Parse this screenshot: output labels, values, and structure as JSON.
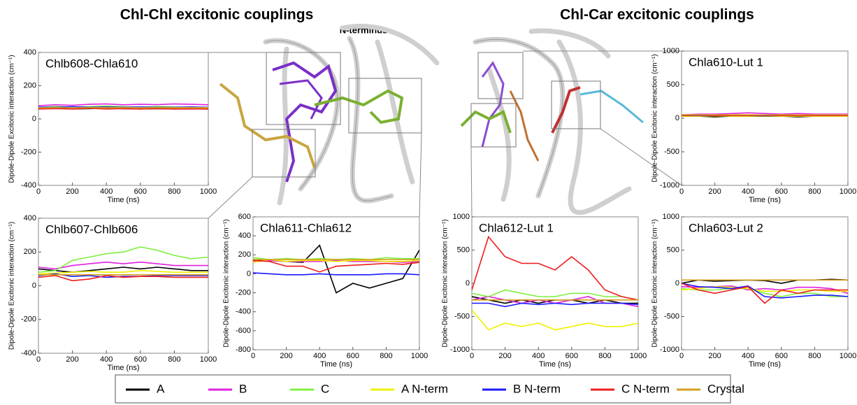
{
  "headings": {
    "left": "Chl-Chl excitonic couplings",
    "right": "Chl-Car excitonic couplings",
    "n_terminus": "N-terminus"
  },
  "chart_data": [
    {
      "type": "line",
      "title": "Chlb608-Chla610",
      "xlabel": "Time (ns)",
      "ylabel": "Dipole-Dipole Excitonic interaction (cm⁻¹)",
      "x": [
        0,
        100,
        200,
        300,
        400,
        500,
        600,
        700,
        800,
        900,
        1000
      ],
      "xlim": [
        0,
        1000
      ],
      "xticks": [
        0,
        200,
        400,
        600,
        800,
        1000
      ],
      "ylim": [
        -400,
        400
      ],
      "yticks": [
        -400,
        -200,
        0,
        200,
        400
      ],
      "series": [
        {
          "name": "A",
          "color": "#000000",
          "values": [
            60,
            65,
            60,
            62,
            65,
            62,
            60,
            62,
            60,
            62,
            60
          ]
        },
        {
          "name": "B",
          "color": "#e020e0",
          "values": [
            80,
            85,
            82,
            88,
            90,
            85,
            88,
            86,
            90,
            88,
            85
          ]
        },
        {
          "name": "C",
          "color": "#80f040",
          "values": [
            70,
            75,
            72,
            74,
            78,
            74,
            70,
            75,
            72,
            70,
            70
          ]
        },
        {
          "name": "A N-term",
          "color": "#f0f000",
          "values": [
            65,
            68,
            70,
            66,
            68,
            65,
            66,
            68,
            65,
            64,
            64
          ]
        },
        {
          "name": "B N-term",
          "color": "#1a1aff",
          "values": [
            72,
            70,
            74,
            70,
            72,
            70,
            72,
            70,
            70,
            72,
            70
          ]
        },
        {
          "name": "C N-term",
          "color": "#ee1c1c",
          "values": [
            60,
            62,
            60,
            64,
            60,
            62,
            60,
            62,
            60,
            60,
            60
          ]
        },
        {
          "name": "Crystal",
          "color": "#d4a020",
          "values": [
            68,
            68,
            68,
            68,
            68,
            68,
            68,
            68,
            68,
            68,
            68
          ]
        }
      ]
    },
    {
      "type": "line",
      "title": "Chlb607-Chlb606",
      "xlabel": "Time (ns)",
      "ylabel": "Dipole-Dipole Excitonic interaction (cm⁻¹)",
      "x": [
        0,
        100,
        200,
        300,
        400,
        500,
        600,
        700,
        800,
        900,
        1000
      ],
      "xlim": [
        0,
        1000
      ],
      "xticks": [
        0,
        200,
        400,
        600,
        800,
        1000
      ],
      "ylim": [
        -400,
        400
      ],
      "yticks": [
        -400,
        -200,
        0,
        200,
        400
      ],
      "series": [
        {
          "name": "A",
          "color": "#000000",
          "values": [
            100,
            90,
            80,
            90,
            100,
            110,
            100,
            110,
            100,
            90,
            90
          ]
        },
        {
          "name": "B",
          "color": "#e020e0",
          "values": [
            110,
            100,
            120,
            130,
            140,
            130,
            140,
            130,
            120,
            120,
            120
          ]
        },
        {
          "name": "C",
          "color": "#80f040",
          "values": [
            80,
            90,
            150,
            170,
            190,
            200,
            230,
            210,
            180,
            160,
            170
          ]
        },
        {
          "name": "A N-term",
          "color": "#f0f000",
          "values": [
            70,
            75,
            80,
            85,
            80,
            80,
            90,
            85,
            80,
            80,
            80
          ]
        },
        {
          "name": "B N-term",
          "color": "#1a1aff",
          "values": [
            60,
            70,
            55,
            60,
            50,
            55,
            55,
            60,
            60,
            60,
            60
          ]
        },
        {
          "name": "C N-term",
          "color": "#ee1c1c",
          "values": [
            50,
            60,
            30,
            40,
            60,
            50,
            55,
            55,
            50,
            50,
            50
          ]
        },
        {
          "name": "Crystal",
          "color": "#d4a020",
          "values": [
            65,
            65,
            65,
            65,
            65,
            65,
            65,
            65,
            65,
            65,
            65
          ]
        }
      ]
    },
    {
      "type": "line",
      "title": "Chla611-Chla612",
      "xlabel": "Time (ns)",
      "ylabel": "Dipole-Dipole Excitonic interaction (cm⁻¹)",
      "x": [
        0,
        100,
        200,
        300,
        400,
        500,
        600,
        700,
        800,
        900,
        1000
      ],
      "xlim": [
        0,
        1000
      ],
      "xticks": [
        0,
        200,
        400,
        600,
        800,
        1000
      ],
      "ylim": [
        -800,
        600
      ],
      "yticks": [
        -800,
        -600,
        -400,
        -200,
        0,
        200,
        400,
        600
      ],
      "series": [
        {
          "name": "A",
          "color": "#000000",
          "values": [
            150,
            140,
            130,
            120,
            300,
            -200,
            -100,
            -150,
            -100,
            -50,
            250
          ]
        },
        {
          "name": "B",
          "color": "#e020e0",
          "values": [
            130,
            140,
            130,
            130,
            130,
            140,
            130,
            130,
            130,
            120,
            130
          ]
        },
        {
          "name": "C",
          "color": "#80f040",
          "values": [
            170,
            150,
            160,
            150,
            160,
            150,
            160,
            150,
            170,
            160,
            160
          ]
        },
        {
          "name": "A N-term",
          "color": "#f0f000",
          "values": [
            120,
            150,
            130,
            140,
            140,
            130,
            140,
            140,
            130,
            130,
            140
          ]
        },
        {
          "name": "B N-term",
          "color": "#1a1aff",
          "values": [
            10,
            0,
            -10,
            -10,
            0,
            -10,
            -10,
            -10,
            0,
            0,
            -10
          ]
        },
        {
          "name": "C N-term",
          "color": "#ee1c1c",
          "values": [
            140,
            130,
            80,
            80,
            20,
            80,
            90,
            100,
            110,
            100,
            120
          ]
        },
        {
          "name": "Crystal",
          "color": "#d4a020",
          "values": [
            150,
            150,
            150,
            150,
            150,
            150,
            150,
            150,
            150,
            150,
            150
          ]
        }
      ]
    },
    {
      "type": "line",
      "title": "Chla610-Lut 1",
      "xlabel": "Time (ns)",
      "ylabel": "Dipole-Dipole Excitonic interaction (cm⁻¹)",
      "x": [
        0,
        100,
        200,
        300,
        400,
        500,
        600,
        700,
        800,
        900,
        1000
      ],
      "xlim": [
        0,
        1000
      ],
      "xticks": [
        0,
        200,
        400,
        600,
        800,
        1000
      ],
      "ylim": [
        -1000,
        1000
      ],
      "yticks": [
        -1000,
        -500,
        0,
        500,
        1000
      ],
      "series": [
        {
          "name": "A",
          "color": "#000000",
          "values": [
            30,
            30,
            20,
            30,
            30,
            30,
            30,
            20,
            30,
            30,
            30
          ]
        },
        {
          "name": "B",
          "color": "#e020e0",
          "values": [
            50,
            60,
            60,
            70,
            80,
            70,
            60,
            70,
            60,
            60,
            60
          ]
        },
        {
          "name": "C",
          "color": "#80f040",
          "values": [
            40,
            40,
            40,
            50,
            50,
            40,
            40,
            40,
            40,
            40,
            40
          ]
        },
        {
          "name": "A N-term",
          "color": "#f0f000",
          "values": [
            30,
            30,
            35,
            30,
            30,
            35,
            30,
            30,
            30,
            30,
            30
          ]
        },
        {
          "name": "B N-term",
          "color": "#1a1aff",
          "values": [
            40,
            40,
            40,
            45,
            40,
            40,
            40,
            45,
            40,
            40,
            40
          ]
        },
        {
          "name": "C N-term",
          "color": "#ee1c1c",
          "values": [
            40,
            45,
            40,
            40,
            40,
            45,
            40,
            40,
            40,
            40,
            40
          ]
        },
        {
          "name": "Crystal",
          "color": "#d4a020",
          "values": [
            50,
            50,
            50,
            50,
            50,
            50,
            50,
            50,
            50,
            50,
            50
          ]
        }
      ]
    },
    {
      "type": "line",
      "title": "Chla612-Lut 1",
      "xlabel": "Time (ns)",
      "ylabel": "Dipole-Dipole Excitonic interaction (cm⁻¹)",
      "x": [
        0,
        100,
        200,
        300,
        400,
        500,
        600,
        700,
        800,
        900,
        1000
      ],
      "xlim": [
        0,
        1000
      ],
      "xticks": [
        0,
        200,
        400,
        600,
        800,
        1000
      ],
      "ylim": [
        -1000,
        1000
      ],
      "yticks": [
        -1000,
        -500,
        0,
        500,
        1000
      ],
      "series": [
        {
          "name": "A",
          "color": "#000000",
          "values": [
            -200,
            -250,
            -300,
            -250,
            -300,
            -250,
            -250,
            -300,
            -250,
            -300,
            -300
          ]
        },
        {
          "name": "B",
          "color": "#e020e0",
          "values": [
            -250,
            -200,
            -250,
            -300,
            -250,
            -300,
            -250,
            -200,
            -300,
            -300,
            -350
          ]
        },
        {
          "name": "C",
          "color": "#80f040",
          "values": [
            -150,
            -200,
            -100,
            -150,
            -200,
            -200,
            -150,
            -150,
            -200,
            -200,
            -250
          ]
        },
        {
          "name": "A N-term",
          "color": "#f0f000",
          "values": [
            -400,
            -700,
            -600,
            -650,
            -600,
            -700,
            -650,
            -600,
            -650,
            -650,
            -600
          ]
        },
        {
          "name": "B N-term",
          "color": "#1a1aff",
          "values": [
            -300,
            -300,
            -350,
            -300,
            -320,
            -300,
            -320,
            -300,
            -300,
            -300,
            -320
          ]
        },
        {
          "name": "C N-term",
          "color": "#ee1c1c",
          "values": [
            -100,
            700,
            400,
            300,
            300,
            200,
            400,
            200,
            -100,
            -200,
            -250
          ]
        },
        {
          "name": "Crystal",
          "color": "#d4a020",
          "values": [
            -250,
            -250,
            -250,
            -250,
            -250,
            -250,
            -250,
            -250,
            -250,
            -250,
            -250
          ]
        }
      ]
    },
    {
      "type": "line",
      "title": "Chla603-Lut 2",
      "xlabel": "Time (ns)",
      "ylabel": "Dipole-Dipole Excitonic interaction (cm⁻¹)",
      "x": [
        0,
        100,
        200,
        300,
        400,
        500,
        600,
        700,
        800,
        900,
        1000
      ],
      "xlim": [
        0,
        1000
      ],
      "xticks": [
        0,
        200,
        400,
        600,
        800,
        1000
      ],
      "ylim": [
        -1000,
        1000
      ],
      "yticks": [
        -1000,
        -500,
        0,
        500,
        1000
      ],
      "series": [
        {
          "name": "A",
          "color": "#000000",
          "values": [
            0,
            50,
            30,
            40,
            50,
            40,
            0,
            50,
            50,
            60,
            50
          ]
        },
        {
          "name": "B",
          "color": "#e020e0",
          "values": [
            -50,
            -60,
            -50,
            -40,
            -100,
            -80,
            -100,
            -60,
            -60,
            -80,
            -150
          ]
        },
        {
          "name": "C",
          "color": "#80f040",
          "values": [
            -80,
            -100,
            -100,
            -80,
            -80,
            -150,
            -200,
            -150,
            -150,
            -200,
            -200
          ]
        },
        {
          "name": "A N-term",
          "color": "#f0f000",
          "values": [
            -100,
            -80,
            -50,
            -60,
            -80,
            -120,
            -120,
            -100,
            -100,
            -120,
            -120
          ]
        },
        {
          "name": "B N-term",
          "color": "#1a1aff",
          "values": [
            0,
            -50,
            -60,
            -80,
            -40,
            -200,
            -220,
            -200,
            -180,
            -180,
            -200
          ]
        },
        {
          "name": "C N-term",
          "color": "#ee1c1c",
          "values": [
            0,
            -100,
            -150,
            -100,
            -50,
            -300,
            -100,
            -150,
            -100,
            -100,
            -100
          ]
        },
        {
          "name": "Crystal",
          "color": "#d4a020",
          "values": [
            50,
            50,
            50,
            50,
            50,
            50,
            50,
            50,
            50,
            50,
            50
          ]
        }
      ]
    }
  ]
}
